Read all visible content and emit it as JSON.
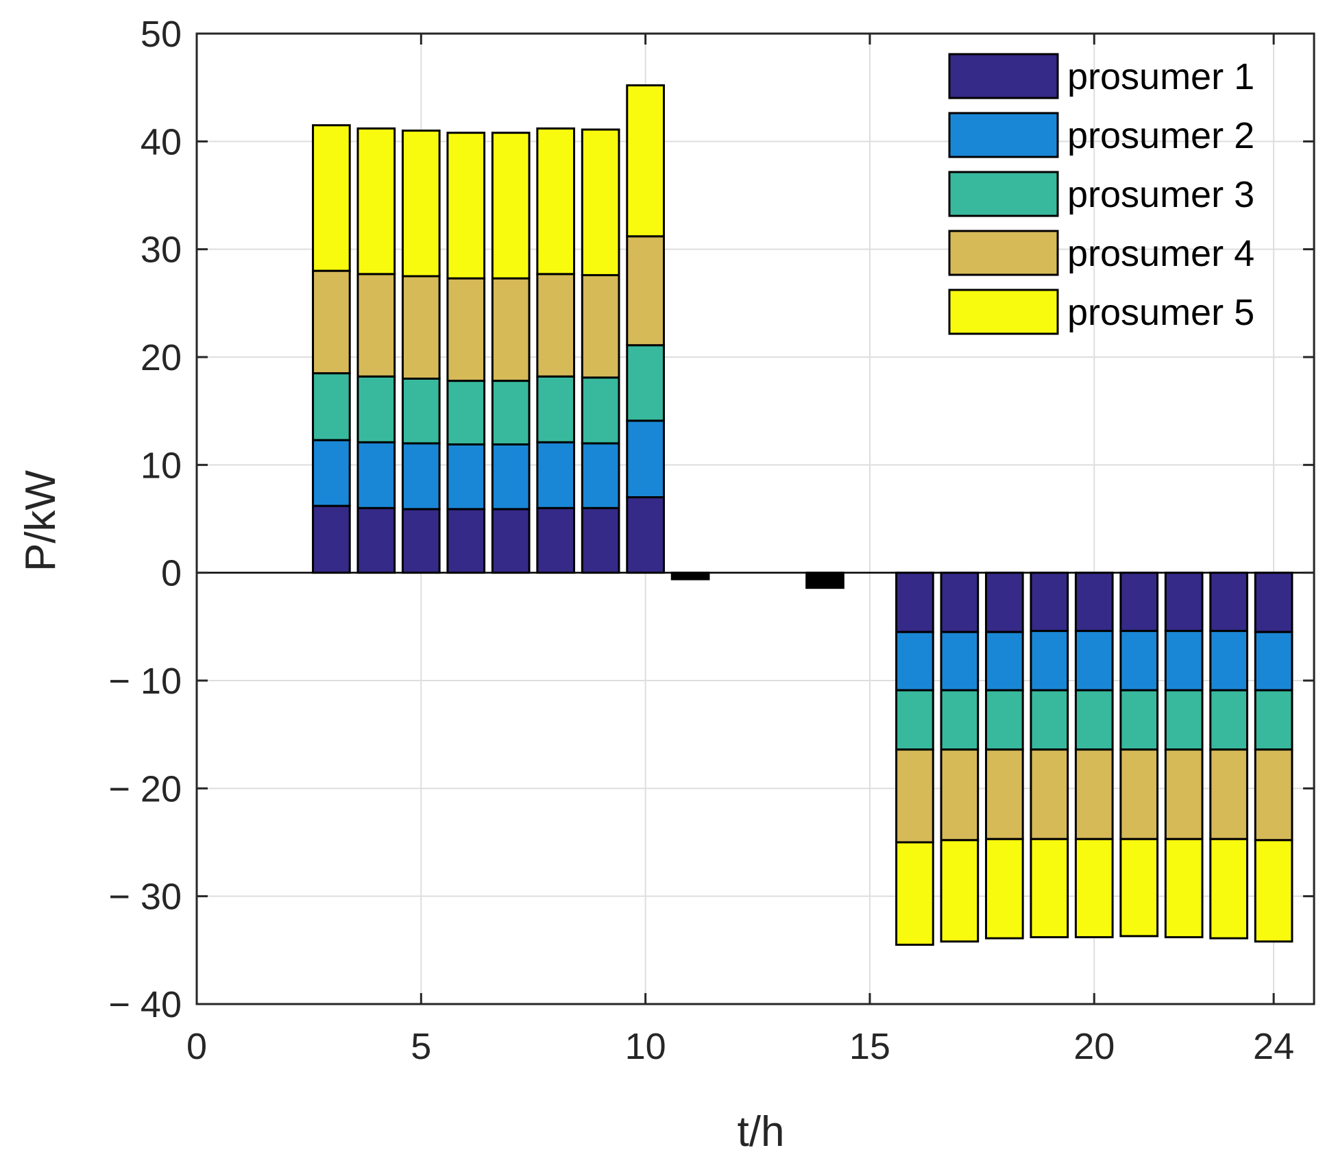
{
  "chart_data": {
    "type": "bar",
    "stacked": true,
    "title": "",
    "xlabel": "t/h",
    "ylabel": "P/kW",
    "xlim": [
      0,
      24.9
    ],
    "ylim": [
      -40,
      50
    ],
    "xticks": [
      0,
      5,
      10,
      15,
      20,
      24
    ],
    "xtick_labels": [
      "0",
      "5",
      "10",
      "15",
      "20",
      "24"
    ],
    "yticks": [
      50,
      40,
      30,
      20,
      10,
      0,
      -10,
      -20,
      -30,
      -40
    ],
    "ytick_labels": [
      "50",
      "40",
      "30",
      "20",
      "10",
      "0",
      "− 10",
      "− 20",
      "− 30",
      "− 40"
    ],
    "grid": true,
    "legend_position": "top-right",
    "x": [
      1,
      2,
      3,
      4,
      5,
      6,
      7,
      8,
      9,
      10,
      11,
      12,
      13,
      14,
      15,
      16,
      17,
      18,
      19,
      20,
      21,
      22,
      23,
      24
    ],
    "series": [
      {
        "name": "prosumer 1",
        "color": "#352A87",
        "values": [
          0,
          0,
          6.2,
          6.0,
          5.9,
          5.9,
          5.9,
          6.0,
          6.0,
          7.0,
          -0.6,
          0,
          0,
          -1.4,
          0,
          -5.5,
          -5.5,
          -5.5,
          -5.4,
          -5.4,
          -5.4,
          -5.4,
          -5.4,
          -5.5
        ]
      },
      {
        "name": "prosumer 2",
        "color": "#1A87D6",
        "values": [
          0,
          0,
          6.1,
          6.1,
          6.1,
          6.0,
          6.0,
          6.1,
          6.0,
          7.1,
          0,
          0,
          0,
          0,
          0,
          -5.4,
          -5.4,
          -5.4,
          -5.5,
          -5.5,
          -5.5,
          -5.5,
          -5.5,
          -5.4
        ]
      },
      {
        "name": "prosumer 3",
        "color": "#38B99E",
        "values": [
          0,
          0,
          6.2,
          6.1,
          6.0,
          5.9,
          5.9,
          6.1,
          6.1,
          7.0,
          0,
          0,
          0,
          0,
          0,
          -5.5,
          -5.5,
          -5.5,
          -5.5,
          -5.5,
          -5.5,
          -5.5,
          -5.5,
          -5.5
        ]
      },
      {
        "name": "prosumer 4",
        "color": "#D6BA58",
        "values": [
          0,
          0,
          9.5,
          9.5,
          9.5,
          9.5,
          9.5,
          9.5,
          9.5,
          10.1,
          0,
          0,
          0,
          0,
          0,
          -8.6,
          -8.4,
          -8.3,
          -8.3,
          -8.3,
          -8.3,
          -8.3,
          -8.3,
          -8.4
        ]
      },
      {
        "name": "prosumer 5",
        "color": "#F9FB0E",
        "values": [
          0,
          0,
          13.5,
          13.5,
          13.5,
          13.5,
          13.5,
          13.5,
          13.5,
          14.0,
          0,
          0,
          0,
          0,
          0,
          -9.5,
          -9.4,
          -9.2,
          -9.1,
          -9.1,
          -9.0,
          -9.1,
          -9.2,
          -9.4
        ]
      }
    ]
  }
}
